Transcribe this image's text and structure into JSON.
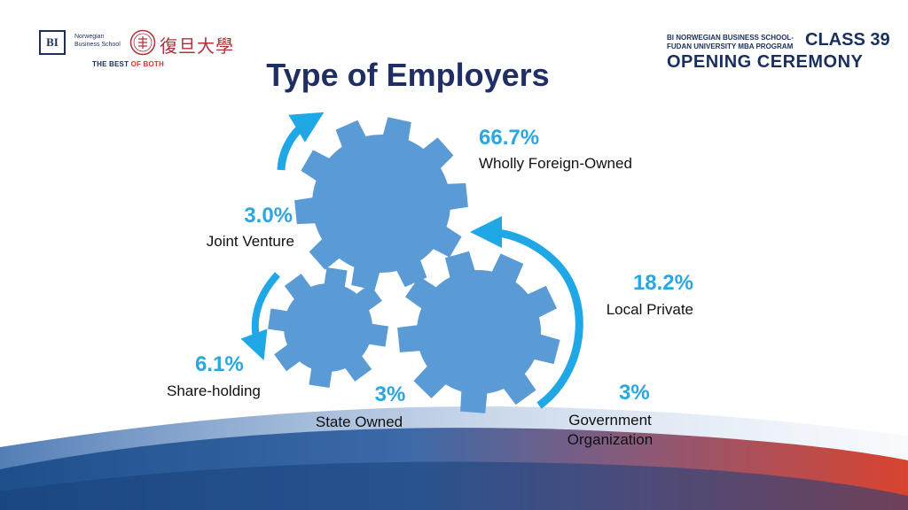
{
  "header": {
    "bi_logo_text": "BI",
    "bi_name_line1": "Norwegian",
    "bi_name_line2": "Business School",
    "fudan_cn_name": "復旦大學",
    "tagline_prefix": "THE BEST ",
    "tagline_accent": "OF BOTH",
    "program_line1": "BI NORWEGIAN BUSINESS SCHOOL-",
    "program_line2": "FUDAN UNIVERSITY MBA PROGRAM",
    "class_label": "CLASS 39",
    "ceremony_label": "OPENING CEREMONY"
  },
  "title": "Type of Employers",
  "employers": [
    {
      "key": "wholly-foreign-owned",
      "percent": "66.7%",
      "label": "Wholly Foreign-Owned"
    },
    {
      "key": "joint-venture",
      "percent": "3.0%",
      "label": "Joint Venture"
    },
    {
      "key": "local-private",
      "percent": "18.2%",
      "label": "Local Private"
    },
    {
      "key": "share-holding",
      "percent": "6.1%",
      "label": "Share-holding"
    },
    {
      "key": "state-owned",
      "percent": "3%",
      "label": "State Owned"
    },
    {
      "key": "government-organization",
      "percent": "3%",
      "label_line1": "Government",
      "label_line2": "Organization"
    }
  ],
  "colors": {
    "gear": "#5b9bd5",
    "arrow": "#1fa7e6",
    "percent": "#2aa6e0",
    "title": "#1f2f66",
    "wave_left": "#1e4f8c",
    "wave_right": "#d9432f"
  },
  "icons": {
    "gears": "gear-icon",
    "arrows": "curved-arrow-icon",
    "seal": "university-seal-icon"
  }
}
